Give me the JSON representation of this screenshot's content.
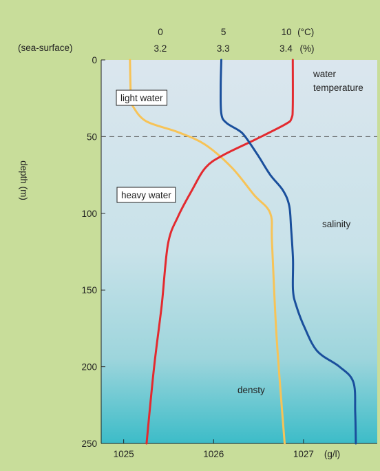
{
  "chart_data": {
    "type": "line",
    "title": "",
    "top_corner_label": "(sea-surface)",
    "y_axis": {
      "label": "depth (m)",
      "ticks": [
        0,
        50,
        100,
        150,
        200,
        250
      ],
      "ylim": [
        0,
        250
      ],
      "inverted": true
    },
    "x_axes": {
      "temperature": {
        "ticks": [
          "0",
          "5",
          "10"
        ],
        "tick_values": [
          0,
          5,
          10
        ],
        "unit": "(°C)",
        "range": [
          -4.7,
          17.2
        ]
      },
      "salinity": {
        "ticks": [
          "3.2",
          "3.3",
          "3.4"
        ],
        "tick_values": [
          3.2,
          3.3,
          3.4
        ],
        "unit": "(%)",
        "range": [
          3.106,
          3.545
        ]
      },
      "density": {
        "ticks": [
          "1025",
          "1026",
          "1027"
        ],
        "tick_values": [
          1025,
          1026,
          1027
        ],
        "unit": "(g/l)",
        "range": [
          1024.75,
          1027.82
        ]
      }
    },
    "annotations": {
      "light_water": "light water",
      "heavy_water": "heavy water",
      "boundary_depth": 50
    },
    "series": [
      {
        "name": "water temperature",
        "name_lines": [
          "water",
          "temperature"
        ],
        "color": "#e32a2f",
        "axis": "temperature",
        "points": [
          [
            10.5,
            0
          ],
          [
            10.5,
            30
          ],
          [
            10.4,
            38
          ],
          [
            9.9,
            42
          ],
          [
            7.5,
            52
          ],
          [
            5.0,
            62
          ],
          [
            3.6,
            70
          ],
          [
            2.5,
            85
          ],
          [
            1.4,
            102
          ],
          [
            0.6,
            120
          ],
          [
            0.1,
            160
          ],
          [
            -0.5,
            200
          ],
          [
            -1.1,
            250
          ]
        ]
      },
      {
        "name": "salinity",
        "color": "#1a4f9c",
        "axis": "salinity",
        "points": [
          [
            3.297,
            0
          ],
          [
            3.296,
            18
          ],
          [
            3.297,
            35
          ],
          [
            3.305,
            41
          ],
          [
            3.325,
            46
          ],
          [
            3.335,
            50
          ],
          [
            3.355,
            62
          ],
          [
            3.375,
            75
          ],
          [
            3.395,
            85
          ],
          [
            3.405,
            95
          ],
          [
            3.408,
            110
          ],
          [
            3.411,
            130
          ],
          [
            3.411,
            150
          ],
          [
            3.416,
            160
          ],
          [
            3.43,
            175
          ],
          [
            3.45,
            190
          ],
          [
            3.485,
            200
          ],
          [
            3.507,
            210
          ],
          [
            3.51,
            230
          ],
          [
            3.511,
            250
          ]
        ]
      },
      {
        "name": "densty",
        "color": "#f7c357",
        "axis": "density",
        "points": [
          [
            1025.07,
            0
          ],
          [
            1025.08,
            25
          ],
          [
            1025.1,
            30
          ],
          [
            1025.25,
            40
          ],
          [
            1025.6,
            47
          ],
          [
            1025.9,
            55
          ],
          [
            1026.2,
            70
          ],
          [
            1026.45,
            88
          ],
          [
            1026.63,
            100
          ],
          [
            1026.65,
            120
          ],
          [
            1026.7,
            180
          ],
          [
            1026.79,
            250
          ]
        ]
      }
    ],
    "grid": false
  }
}
